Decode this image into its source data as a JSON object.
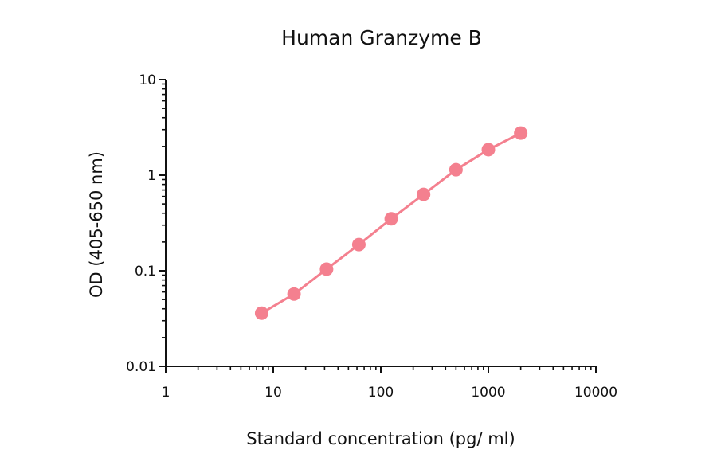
{
  "chart_data": {
    "type": "line",
    "title": "Human Granzyme B",
    "xlabel": "Standard concentration (pg/ ml)",
    "ylabel": "OD (405-650 nm)",
    "xscale": "log",
    "yscale": "log",
    "xlim": [
      1,
      10000
    ],
    "ylim": [
      0.01,
      10
    ],
    "x_tick_labels": [
      "1",
      "10",
      "100",
      "1000",
      "10000"
    ],
    "y_tick_labels": [
      "0.01",
      "0.1",
      "1",
      "10"
    ],
    "grid": false,
    "legend": null,
    "series": [
      {
        "name": "Human Granzyme B",
        "color": "#f4808f",
        "marker": "circle",
        "x": [
          7.8,
          15.6,
          31.3,
          62.5,
          125,
          250,
          500,
          1000,
          2000
        ],
        "values": [
          0.036,
          0.057,
          0.104,
          0.188,
          0.35,
          0.63,
          1.14,
          1.85,
          2.76
        ]
      }
    ]
  }
}
